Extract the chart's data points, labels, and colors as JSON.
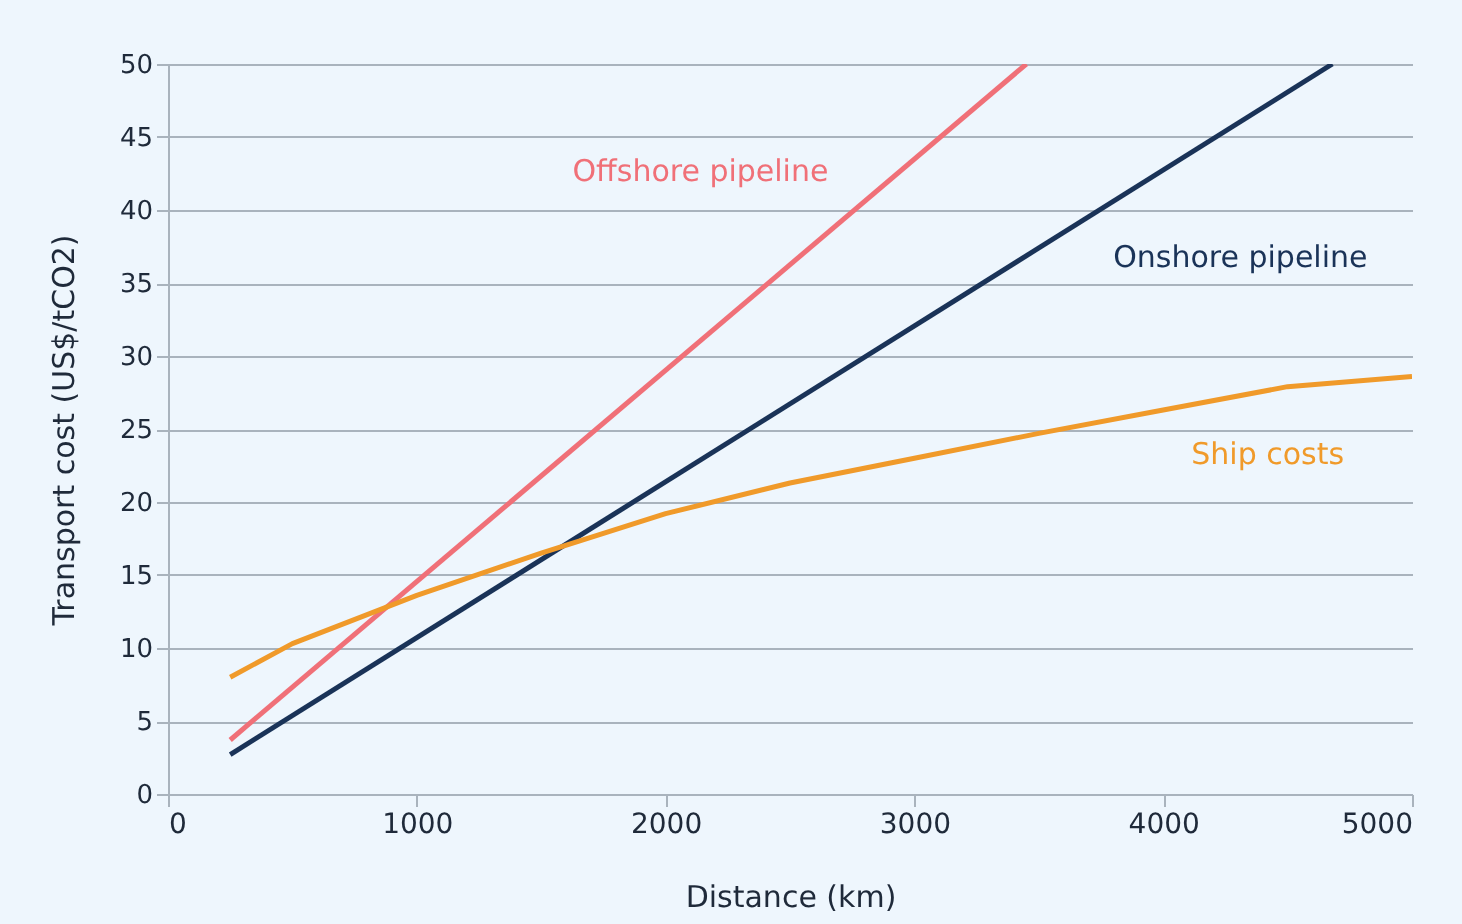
{
  "chart_data": {
    "type": "line",
    "xlabel": "Distance (km)",
    "ylabel": "Transport cost (US$/tCO2)",
    "xlim": [
      0,
      5000
    ],
    "xticks": [
      0,
      1000,
      2000,
      3000,
      4000,
      5000
    ],
    "ylim": [
      0,
      50
    ],
    "yticks": [
      0,
      5,
      10,
      15,
      20,
      25,
      30,
      35,
      40,
      45,
      50
    ],
    "grid": "y",
    "legend": false,
    "series": [
      {
        "name": "Offshore pipeline",
        "color": "#f07078",
        "x": [
          250,
          3450
        ],
        "values": [
          3.7,
          50
        ]
      },
      {
        "name": "Onshore pipeline",
        "color": "#1a3358",
        "x": [
          250,
          4680
        ],
        "values": [
          2.7,
          50
        ]
      },
      {
        "name": "Ship costs",
        "color": "#f09a2a",
        "x": [
          250,
          500,
          1000,
          1500,
          2000,
          2500,
          3000,
          3500,
          4000,
          4500,
          5000
        ],
        "values": [
          8,
          10.3,
          13.6,
          16.5,
          19.2,
          21.3,
          23,
          24.7,
          26.3,
          27.9,
          28.6
        ]
      }
    ]
  }
}
